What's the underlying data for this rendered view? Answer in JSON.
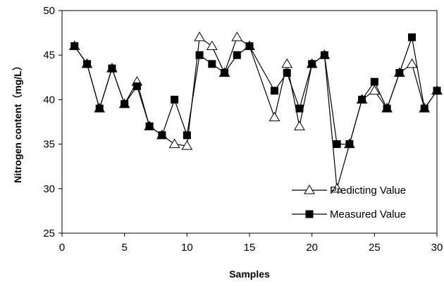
{
  "chart_data": {
    "type": "line",
    "xlabel": "Samples",
    "ylabel": "Nitrogen content（mg/L）",
    "xlim": [
      0,
      30
    ],
    "ylim": [
      25,
      50
    ],
    "xticks": [
      "0",
      "5",
      "10",
      "15",
      "20",
      "25",
      "30"
    ],
    "yticks": [
      "25",
      "30",
      "35",
      "40",
      "45",
      "50"
    ],
    "grid": false,
    "legend_position": "lower-right",
    "series": [
      {
        "name": "Predicting Value",
        "marker": "open-triangle",
        "color": "#000000",
        "x": [
          1,
          2,
          3,
          4,
          5,
          6,
          7,
          8,
          9,
          10,
          11,
          12,
          13,
          14,
          15,
          17,
          18,
          19,
          20,
          21,
          22,
          23,
          24,
          25,
          26,
          27,
          28,
          29,
          30
        ],
        "values": [
          46,
          44,
          39,
          43.5,
          39.5,
          42,
          37,
          36,
          35,
          34.8,
          47,
          46,
          43,
          47,
          46,
          38,
          44,
          37,
          44,
          45,
          30,
          35,
          40,
          41,
          39,
          43,
          44,
          39,
          41
        ]
      },
      {
        "name": "Measured Value",
        "marker": "filled-square",
        "color": "#000000",
        "x": [
          1,
          2,
          3,
          4,
          5,
          6,
          7,
          8,
          9,
          10,
          11,
          12,
          13,
          14,
          15,
          17,
          18,
          19,
          20,
          21,
          22,
          23,
          24,
          25,
          26,
          27,
          28,
          29,
          30
        ],
        "values": [
          46,
          44,
          39,
          43.5,
          39.5,
          41.5,
          37,
          36,
          40,
          36,
          45,
          44,
          43,
          45,
          46,
          41,
          43,
          39,
          44,
          45,
          35,
          35,
          40,
          42,
          39,
          43,
          47,
          39,
          41
        ]
      }
    ]
  }
}
